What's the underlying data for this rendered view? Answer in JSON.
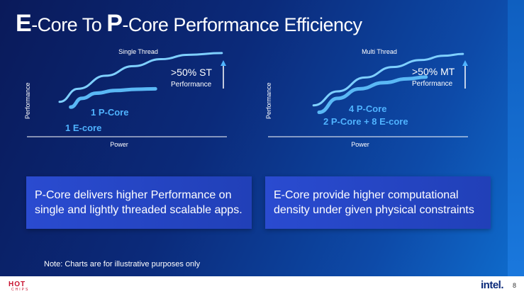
{
  "slide": {
    "title_e": "E",
    "title_mid": "-Core To ",
    "title_p": "P",
    "title_rest": "-Core Performance Efficiency",
    "box_left": "P-Core delivers higher Performance on single and lightly threaded scalable apps.",
    "box_right": "E-Core provide higher computational density under given physical constraints",
    "note": "Note: Charts are for illustrative purposes only",
    "footer_logo_left_top": "HOT",
    "footer_logo_left_bottom": "CHIPS",
    "footer_logo_right": "intel.",
    "page_number": "8"
  },
  "colors": {
    "accent_light": "#4fb3ff",
    "curve_upper": "#7fd0ff",
    "curve_lower": "#5ab8f5",
    "box_fill": "#2a4bd0"
  },
  "chart_data": [
    {
      "type": "line",
      "title": "Single Thread",
      "xlabel": "Power",
      "ylabel": "Performance",
      "annotation": ">50% ST",
      "annotation_sub": "Performance",
      "xlim": [
        0,
        1
      ],
      "ylim": [
        0,
        1
      ],
      "grid": false,
      "series": [
        {
          "name": "1 P-Core",
          "x": [
            0.1,
            0.2,
            0.35,
            0.5,
            0.65,
            0.8,
            0.98
          ],
          "y": [
            0.4,
            0.55,
            0.7,
            0.81,
            0.89,
            0.94,
            0.96
          ]
        },
        {
          "name": "1 E-core",
          "x": [
            0.16,
            0.22,
            0.3,
            0.4,
            0.52,
            0.62
          ],
          "y": [
            0.34,
            0.44,
            0.5,
            0.53,
            0.545,
            0.55
          ]
        }
      ]
    },
    {
      "type": "line",
      "title": "Multi Thread",
      "xlabel": "Power",
      "ylabel": "Performance",
      "annotation": ">50% MT",
      "annotation_sub": "Performance",
      "xlim": [
        0,
        1
      ],
      "ylim": [
        0,
        1
      ],
      "grid": false,
      "series": [
        {
          "name": "4 P-Core",
          "x": [
            0.17,
            0.3,
            0.45,
            0.6,
            0.75,
            0.88,
            0.98
          ],
          "y": [
            0.36,
            0.52,
            0.68,
            0.8,
            0.88,
            0.93,
            0.95
          ]
        },
        {
          "name": "2 P-Core + 8 E-core",
          "x": [
            0.2,
            0.3,
            0.42,
            0.55,
            0.68,
            0.78
          ],
          "y": [
            0.28,
            0.44,
            0.55,
            0.62,
            0.665,
            0.685
          ]
        }
      ]
    }
  ]
}
